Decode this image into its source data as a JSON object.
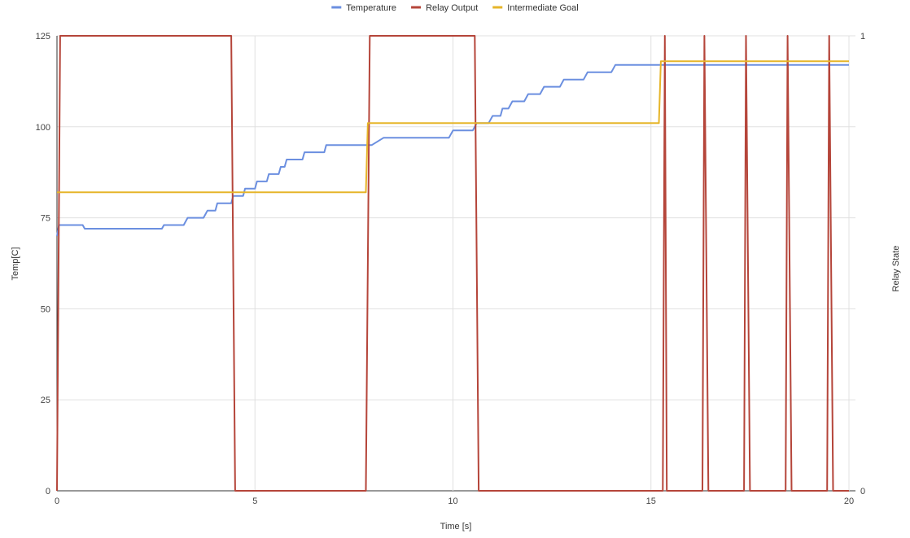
{
  "chart_data": {
    "type": "line",
    "title": "",
    "xlabel": "Time [s]",
    "ylabel": "Temp[C]",
    "y2label": "Relay State",
    "xlim": [
      0,
      20
    ],
    "ylim": [
      0,
      125
    ],
    "y2lim": [
      0,
      1
    ],
    "x_ticks": [
      "0",
      "5",
      "10",
      "15",
      "20"
    ],
    "y_ticks": [
      "0",
      "25",
      "50",
      "75",
      "100",
      "125"
    ],
    "y2_ticks": [
      "0",
      "1"
    ],
    "grid": true,
    "legend_position": "top",
    "series": [
      {
        "name": "Temperature",
        "color": "#6b8fe0",
        "axis": "left",
        "points": [
          [
            0,
            70
          ],
          [
            0.05,
            73
          ],
          [
            0.65,
            73
          ],
          [
            0.7,
            72
          ],
          [
            2.65,
            72
          ],
          [
            2.7,
            73
          ],
          [
            3.2,
            73
          ],
          [
            3.3,
            75
          ],
          [
            3.7,
            75
          ],
          [
            3.8,
            77
          ],
          [
            4.0,
            77
          ],
          [
            4.05,
            79
          ],
          [
            4.4,
            79
          ],
          [
            4.45,
            81
          ],
          [
            4.7,
            81
          ],
          [
            4.75,
            83
          ],
          [
            5.0,
            83
          ],
          [
            5.05,
            85
          ],
          [
            5.3,
            85
          ],
          [
            5.35,
            87
          ],
          [
            5.6,
            87
          ],
          [
            5.65,
            89
          ],
          [
            5.75,
            89
          ],
          [
            5.8,
            91
          ],
          [
            6.2,
            91
          ],
          [
            6.25,
            93
          ],
          [
            6.75,
            93
          ],
          [
            6.8,
            95
          ],
          [
            7.95,
            95
          ],
          [
            8.25,
            97
          ],
          [
            9.9,
            97
          ],
          [
            10.0,
            99
          ],
          [
            10.5,
            99
          ],
          [
            10.6,
            101
          ],
          [
            10.9,
            101
          ],
          [
            11.0,
            103
          ],
          [
            11.2,
            103
          ],
          [
            11.25,
            105
          ],
          [
            11.4,
            105
          ],
          [
            11.5,
            107
          ],
          [
            11.8,
            107
          ],
          [
            11.9,
            109
          ],
          [
            12.2,
            109
          ],
          [
            12.3,
            111
          ],
          [
            12.7,
            111
          ],
          [
            12.8,
            113
          ],
          [
            13.3,
            113
          ],
          [
            13.4,
            115
          ],
          [
            14.0,
            115
          ],
          [
            14.1,
            117
          ],
          [
            20,
            117
          ]
        ]
      },
      {
        "name": "Relay Output",
        "color": "#b5453a",
        "axis": "right",
        "points": [
          [
            0,
            0
          ],
          [
            0.08,
            1
          ],
          [
            4.4,
            1
          ],
          [
            4.5,
            0
          ],
          [
            7.8,
            0
          ],
          [
            7.9,
            1
          ],
          [
            10.55,
            1
          ],
          [
            10.65,
            0
          ],
          [
            15.3,
            0
          ],
          [
            15.35,
            1
          ],
          [
            15.4,
            0
          ],
          [
            16.3,
            0
          ],
          [
            16.35,
            1
          ],
          [
            16.45,
            0
          ],
          [
            17.35,
            0
          ],
          [
            17.4,
            1
          ],
          [
            17.5,
            0
          ],
          [
            18.4,
            0
          ],
          [
            18.45,
            1
          ],
          [
            18.55,
            0
          ],
          [
            19.45,
            0
          ],
          [
            19.5,
            1
          ],
          [
            19.6,
            0
          ],
          [
            20,
            0
          ]
        ]
      },
      {
        "name": "Intermediate Goal",
        "color": "#e6b52a",
        "axis": "left",
        "points": [
          [
            0,
            82
          ],
          [
            7.8,
            82
          ],
          [
            7.85,
            101
          ],
          [
            15.2,
            101
          ],
          [
            15.25,
            118
          ],
          [
            20,
            118
          ]
        ]
      }
    ]
  }
}
